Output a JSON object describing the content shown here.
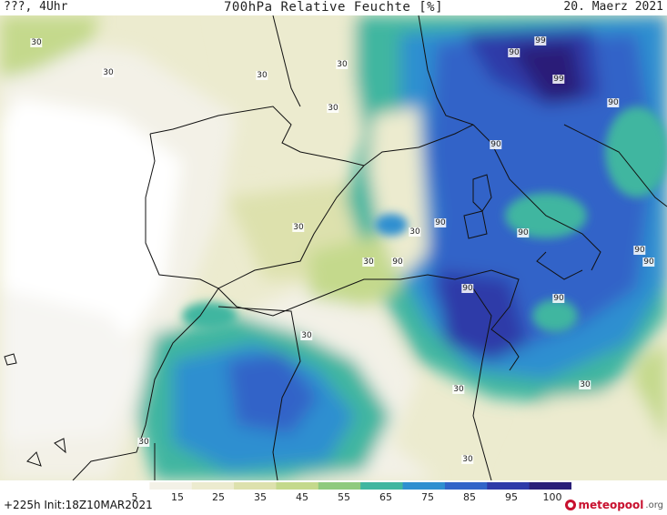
{
  "header": {
    "left": "???, 4Uhr",
    "title": "700hPa Relative Feuchte [%]",
    "date": "20. Maerz 2021"
  },
  "map": {
    "contour_labels": [
      "30",
      "30",
      "30",
      "30",
      "30",
      "30",
      "30",
      "30",
      "30",
      "30",
      "30",
      "30",
      "30",
      "90",
      "90",
      "90",
      "90",
      "90",
      "90",
      "90",
      "90",
      "90",
      "90",
      "99",
      "99"
    ]
  },
  "legend": {
    "ticks": [
      "5",
      "15",
      "25",
      "35",
      "45",
      "55",
      "65",
      "75",
      "85",
      "95",
      "100"
    ],
    "colors": [
      "#ffffff",
      "#f3f1e7",
      "#ecebcf",
      "#dde1ad",
      "#c4d98c",
      "#8fca7e",
      "#40b6a0",
      "#2f8fd0",
      "#3164c8",
      "#2e3aa8",
      "#2a1f78"
    ]
  },
  "footer": {
    "run": "+225h  Init:18Z10MAR2021",
    "logo_main": "meteopool",
    "logo_tld": ".org"
  }
}
